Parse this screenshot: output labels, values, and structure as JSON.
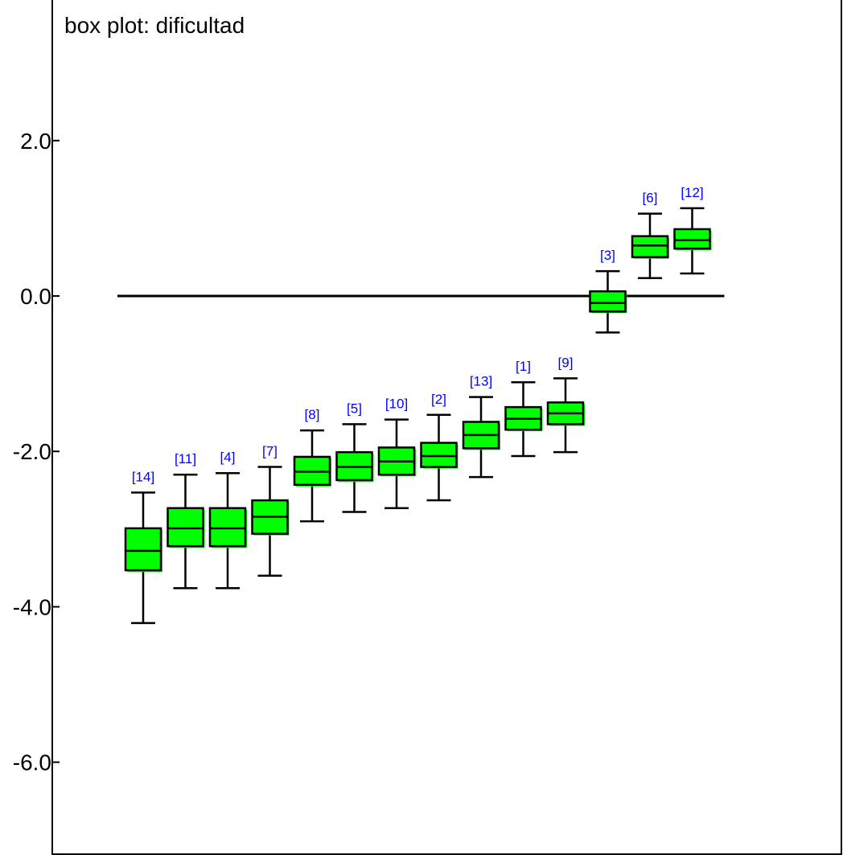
{
  "chart_data": {
    "type": "box",
    "title": "box plot: dificultad",
    "xlabel": "",
    "ylabel": "",
    "ylim": [
      -7.0,
      3.8
    ],
    "yticks": [
      2.0,
      0.0,
      -2.0,
      -4.0,
      -6.0
    ],
    "ytick_labels": [
      "2.0",
      "0.0",
      "-2.0",
      "-4.0",
      "-6.0"
    ],
    "reference_line": 0.0,
    "grid": false,
    "legend": "none",
    "colors": {
      "box_fill": "#00ff00",
      "outline": "#000000",
      "label": "#0000ff",
      "background": "#ffffff"
    },
    "series": [
      {
        "label": "[14]",
        "whisker_low": -4.21,
        "q1": -3.53,
        "median": -3.28,
        "q3": -2.99,
        "whisker_high": -2.53
      },
      {
        "label": "[11]",
        "whisker_low": -3.76,
        "q1": -3.22,
        "median": -2.99,
        "q3": -2.73,
        "whisker_high": -2.3
      },
      {
        "label": "[4]",
        "whisker_low": -3.76,
        "q1": -3.22,
        "median": -2.99,
        "q3": -2.73,
        "whisker_high": -2.28
      },
      {
        "label": "[7]",
        "whisker_low": -3.6,
        "q1": -3.06,
        "median": -2.84,
        "q3": -2.63,
        "whisker_high": -2.2
      },
      {
        "label": "[8]",
        "whisker_low": -2.9,
        "q1": -2.43,
        "median": -2.26,
        "q3": -2.07,
        "whisker_high": -1.73
      },
      {
        "label": "[5]",
        "whisker_low": -2.78,
        "q1": -2.37,
        "median": -2.2,
        "q3": -2.01,
        "whisker_high": -1.65
      },
      {
        "label": "[10]",
        "whisker_low": -2.73,
        "q1": -2.3,
        "median": -2.13,
        "q3": -1.95,
        "whisker_high": -1.59
      },
      {
        "label": "[2]",
        "whisker_low": -2.63,
        "q1": -2.2,
        "median": -2.06,
        "q3": -1.89,
        "whisker_high": -1.53
      },
      {
        "label": "[13]",
        "whisker_low": -2.33,
        "q1": -1.96,
        "median": -1.79,
        "q3": -1.62,
        "whisker_high": -1.3
      },
      {
        "label": "[1]",
        "whisker_low": -2.06,
        "q1": -1.72,
        "median": -1.58,
        "q3": -1.43,
        "whisker_high": -1.11
      },
      {
        "label": "[9]",
        "whisker_low": -2.01,
        "q1": -1.65,
        "median": -1.51,
        "q3": -1.37,
        "whisker_high": -1.06
      },
      {
        "label": "[3]",
        "whisker_low": -0.47,
        "q1": -0.2,
        "median": -0.09,
        "q3": 0.06,
        "whisker_high": 0.32
      },
      {
        "label": "[6]",
        "whisker_low": 0.23,
        "q1": 0.5,
        "median": 0.65,
        "q3": 0.77,
        "whisker_high": 1.06
      },
      {
        "label": "[12]",
        "whisker_low": 0.29,
        "q1": 0.61,
        "median": 0.72,
        "q3": 0.86,
        "whisker_high": 1.13
      }
    ]
  }
}
